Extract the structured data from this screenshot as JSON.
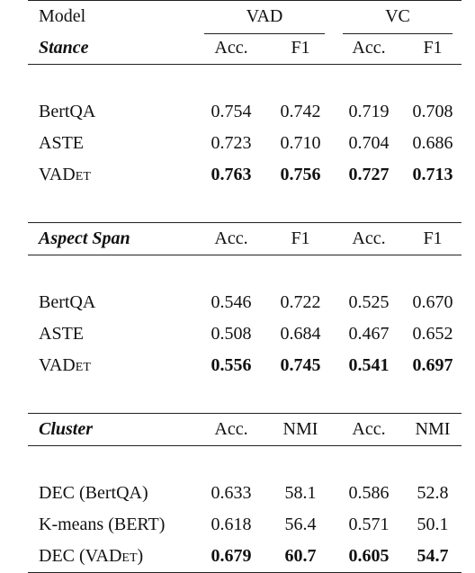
{
  "header": {
    "model": "Model",
    "group1": "VAD",
    "group2": "VC"
  },
  "sections": [
    {
      "title": "Stance",
      "metrics": [
        "Acc.",
        "F1",
        "Acc.",
        "F1"
      ],
      "rows": [
        {
          "model_main": "BertQA",
          "model_sc": "",
          "model_suffix": "",
          "values": [
            "0.754",
            "0.742",
            "0.719",
            "0.708"
          ]
        },
        {
          "model_main": "ASTE",
          "model_sc": "",
          "model_suffix": "",
          "values": [
            "0.723",
            "0.710",
            "0.704",
            "0.686"
          ]
        },
        {
          "model_main": "VAD",
          "model_sc": "et",
          "model_suffix": "",
          "values": [
            "0.763",
            "0.756",
            "0.727",
            "0.713"
          ],
          "bold": true
        }
      ]
    },
    {
      "title": "Aspect Span",
      "metrics": [
        "Acc.",
        "F1",
        "Acc.",
        "F1"
      ],
      "rows": [
        {
          "model_main": "BertQA",
          "model_sc": "",
          "model_suffix": "",
          "values": [
            "0.546",
            "0.722",
            "0.525",
            "0.670"
          ]
        },
        {
          "model_main": "ASTE",
          "model_sc": "",
          "model_suffix": "",
          "values": [
            "0.508",
            "0.684",
            "0.467",
            "0.652"
          ]
        },
        {
          "model_main": "VAD",
          "model_sc": "et",
          "model_suffix": "",
          "values": [
            "0.556",
            "0.745",
            "0.541",
            "0.697"
          ],
          "bold": true
        }
      ]
    },
    {
      "title": "Cluster",
      "metrics": [
        "Acc.",
        "NMI",
        "Acc.",
        "NMI"
      ],
      "rows": [
        {
          "model_main": "DEC (BertQA)",
          "model_sc": "",
          "model_suffix": "",
          "values": [
            "0.633",
            "58.1",
            "0.586",
            "52.8"
          ]
        },
        {
          "model_main": "K-means (BERT)",
          "model_sc": "",
          "model_suffix": "",
          "values": [
            "0.618",
            "56.4",
            "0.571",
            "50.1"
          ]
        },
        {
          "model_main": "DEC (VAD",
          "model_sc": "et",
          "model_suffix": ")",
          "values": [
            "0.679",
            "60.7",
            "0.605",
            "54.7"
          ],
          "bold": true
        }
      ]
    }
  ]
}
